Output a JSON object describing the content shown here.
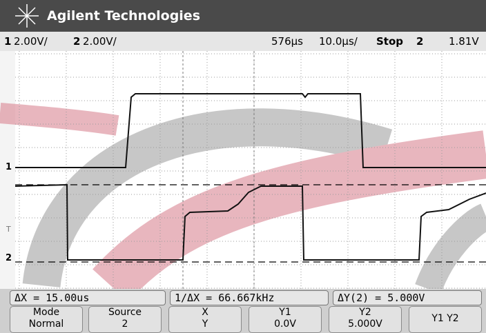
{
  "header": {
    "title": "Agilent Technologies"
  },
  "status": {
    "ch1": "1",
    "ch1_scale": "2.00V/",
    "ch2": "2",
    "ch2_scale": "2.00V/",
    "delay": "576µs",
    "timebase": "10.0µs/",
    "run_state": "Stop",
    "trigger_source": "2",
    "trigger_level": "1.81V"
  },
  "markers": {
    "ch1": "1",
    "ch2": "2",
    "trigger": "T"
  },
  "measurements": {
    "delta_x": "ΔX = 15.00us",
    "inv_delta_x": "1/ΔX = 66.667kHz",
    "delta_y": "ΔY(2) = 5.000V"
  },
  "softkeys": [
    {
      "top": "Mode",
      "bottom": "Normal"
    },
    {
      "top": "Source",
      "bottom": "2"
    },
    {
      "top": "X",
      "bottom": "Y"
    },
    {
      "top": "Y1",
      "bottom": "0.0V"
    },
    {
      "top": "Y2",
      "bottom": "5.000V"
    },
    {
      "top": "Y1 Y2"
    }
  ]
}
